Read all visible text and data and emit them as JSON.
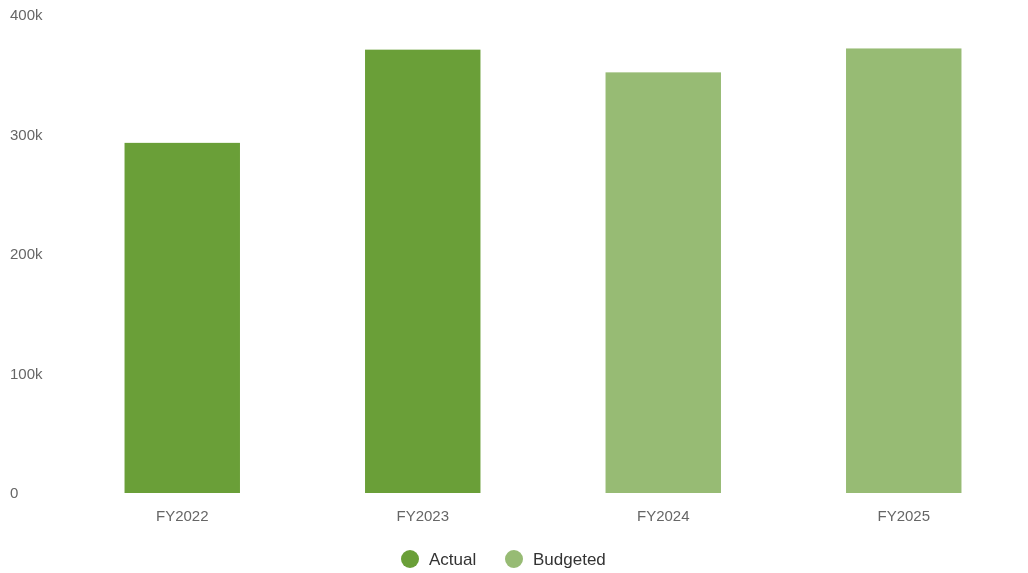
{
  "chart_data": {
    "type": "bar",
    "categories": [
      "FY2022",
      "FY2023",
      "FY2024",
      "FY2025"
    ],
    "stacked": true,
    "series": [
      {
        "name": "Actual",
        "color": "#6a9f38",
        "values": [
          293000,
          371000,
          null,
          null
        ]
      },
      {
        "name": "Budgeted",
        "color": "#97bb74",
        "values": [
          null,
          null,
          352000,
          372000
        ]
      }
    ],
    "ylim": [
      0,
      400000
    ],
    "yticks": [
      {
        "value": 0,
        "label": "0"
      },
      {
        "value": 100000,
        "label": "100k"
      },
      {
        "value": 200000,
        "label": "200k"
      },
      {
        "value": 300000,
        "label": "300k"
      },
      {
        "value": 400000,
        "label": "400k"
      }
    ],
    "grid": false,
    "legend": "bottom"
  }
}
